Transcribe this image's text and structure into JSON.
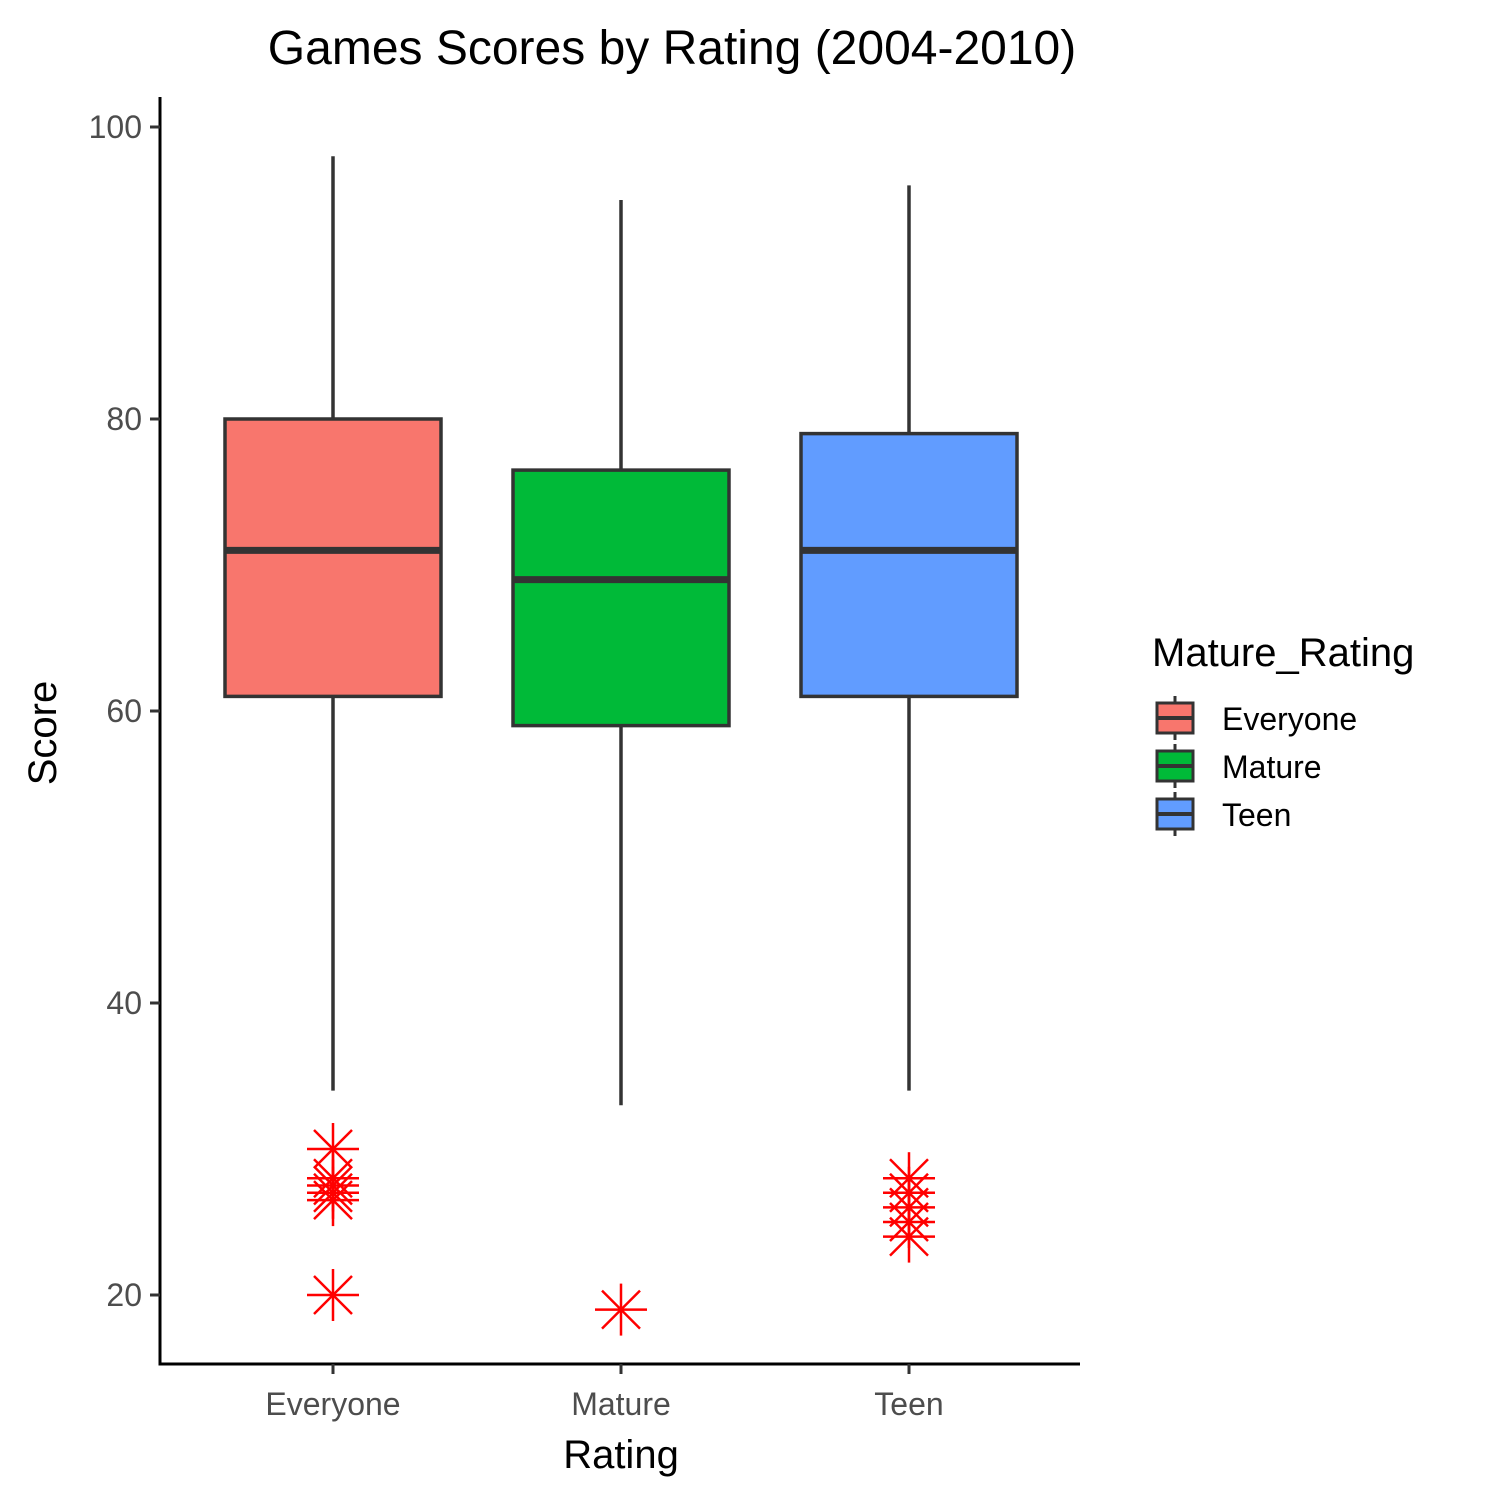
{
  "chart_data": {
    "type": "boxplot",
    "title": "Games Scores by Rating (2004-2010)",
    "xlabel": "Rating",
    "ylabel": "Score",
    "ylim": [
      15,
      102
    ],
    "yticks": [
      20,
      40,
      60,
      80,
      100
    ],
    "categories": [
      "Everyone",
      "Mature",
      "Teen"
    ],
    "boxes": [
      {
        "category": "Everyone",
        "fill": "#F8766D",
        "whisker_low": 34,
        "q1": 61,
        "median": 71,
        "q3": 80,
        "whisker_high": 98,
        "outliers": [
          30,
          28,
          27.5,
          27,
          26.5,
          20
        ]
      },
      {
        "category": "Mature",
        "fill": "#00BA38",
        "whisker_low": 33,
        "q1": 59,
        "median": 69,
        "q3": 76.5,
        "whisker_high": 95,
        "outliers": [
          19
        ]
      },
      {
        "category": "Teen",
        "fill": "#619CFF",
        "whisker_low": 34,
        "q1": 61,
        "median": 71,
        "q3": 79,
        "whisker_high": 96,
        "outliers": [
          28,
          27,
          26,
          25,
          24
        ]
      }
    ],
    "legend": {
      "title": "Mature_Rating",
      "position": "right",
      "entries": [
        {
          "label": "Everyone",
          "color": "#F8766D"
        },
        {
          "label": "Mature",
          "color": "#00BA38"
        },
        {
          "label": "Teen",
          "color": "#619CFF"
        }
      ]
    },
    "outlier_color": "#FF0000",
    "box_stroke_color": "#333333",
    "axis_color": "#000000",
    "grid": false
  }
}
